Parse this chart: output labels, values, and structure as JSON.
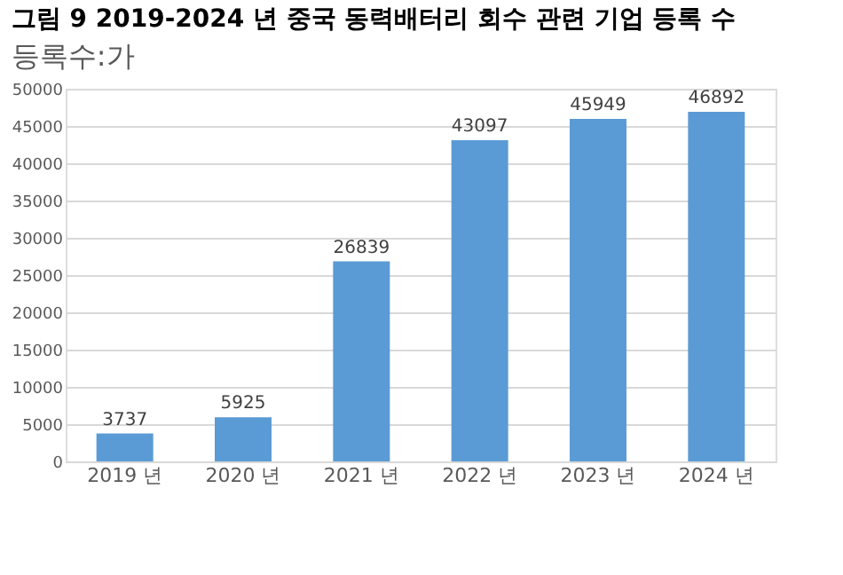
{
  "chart_data": {
    "type": "bar",
    "title": "그림 9 2019-2024 년 중국 동력배터리 회수 관련 기업 등록 수",
    "subtitle": "등록수:가",
    "categories": [
      "2019 년",
      "2020 년",
      "2021 년",
      "2022 년",
      "2023 년",
      "2024 년"
    ],
    "values": [
      3737,
      5925,
      26839,
      43097,
      45949,
      46892
    ],
    "color": "#5b9bd5",
    "ylim": [
      0,
      50000
    ],
    "yticks": [
      0,
      5000,
      10000,
      15000,
      20000,
      25000,
      30000,
      35000,
      40000,
      45000,
      50000
    ],
    "grid": "y",
    "data_labels": true
  }
}
